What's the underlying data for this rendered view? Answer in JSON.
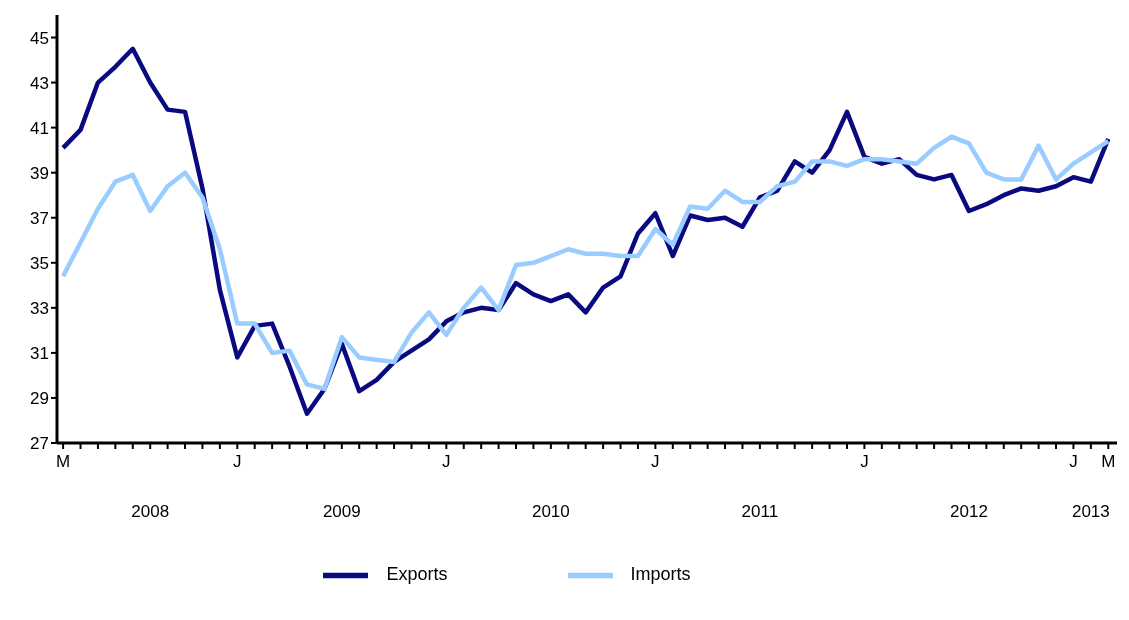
{
  "chart_data": {
    "type": "line",
    "categories": [
      "M",
      null,
      null,
      null,
      null,
      null,
      null,
      null,
      null,
      null,
      "J",
      null,
      null,
      null,
      null,
      null,
      null,
      null,
      null,
      null,
      null,
      null,
      "J",
      null,
      null,
      null,
      null,
      null,
      null,
      null,
      null,
      null,
      null,
      null,
      "J",
      null,
      null,
      null,
      null,
      null,
      null,
      null,
      null,
      null,
      null,
      null,
      "J",
      null,
      null,
      null,
      null,
      null,
      null,
      null,
      null,
      null,
      null,
      null,
      "J",
      null,
      "M"
    ],
    "series": [
      {
        "name": "Exports",
        "color": "#0a0a80",
        "values": [
          40.1,
          40.9,
          43.0,
          43.7,
          44.5,
          43.0,
          41.8,
          41.7,
          38.3,
          33.8,
          30.8,
          32.2,
          32.3,
          30.4,
          28.3,
          29.4,
          31.4,
          29.3,
          29.8,
          30.6,
          31.1,
          31.6,
          32.4,
          32.8,
          33.0,
          32.9,
          34.1,
          33.6,
          33.3,
          33.6,
          32.8,
          33.9,
          34.4,
          36.3,
          37.2,
          35.3,
          37.1,
          36.9,
          37.0,
          36.6,
          37.9,
          38.2,
          39.5,
          39.0,
          40.0,
          41.7,
          39.7,
          39.4,
          39.6,
          38.9,
          38.7,
          38.9,
          37.3,
          37.6,
          38.0,
          38.3,
          38.2,
          38.4,
          38.8,
          38.6,
          40.5
        ]
      },
      {
        "name": "Imports",
        "color": "#99ccff",
        "values": [
          34.4,
          35.9,
          37.4,
          38.6,
          38.9,
          37.3,
          38.4,
          39.0,
          37.9,
          35.6,
          32.3,
          32.3,
          31.0,
          31.1,
          29.6,
          29.4,
          31.7,
          30.8,
          30.7,
          30.6,
          31.9,
          32.8,
          31.8,
          33.0,
          33.9,
          32.9,
          34.9,
          35.0,
          35.3,
          35.6,
          35.4,
          35.4,
          35.3,
          35.3,
          36.5,
          35.8,
          37.5,
          37.4,
          38.2,
          37.7,
          37.7,
          38.4,
          38.6,
          39.5,
          39.5,
          39.3,
          39.6,
          39.6,
          39.5,
          39.4,
          40.1,
          40.6,
          40.3,
          39.0,
          38.7,
          38.7,
          40.2,
          38.7,
          39.4,
          39.9,
          40.4
        ]
      }
    ],
    "ylim": [
      27,
      46
    ],
    "yticks": [
      27,
      29,
      31,
      33,
      35,
      37,
      39,
      41,
      43,
      45
    ],
    "annotations": [
      "2008",
      "2009",
      "2010",
      "2011",
      "2012",
      "2013"
    ],
    "grid": false,
    "legend": "bottom",
    "marker": "none",
    "line_style": "solid"
  }
}
